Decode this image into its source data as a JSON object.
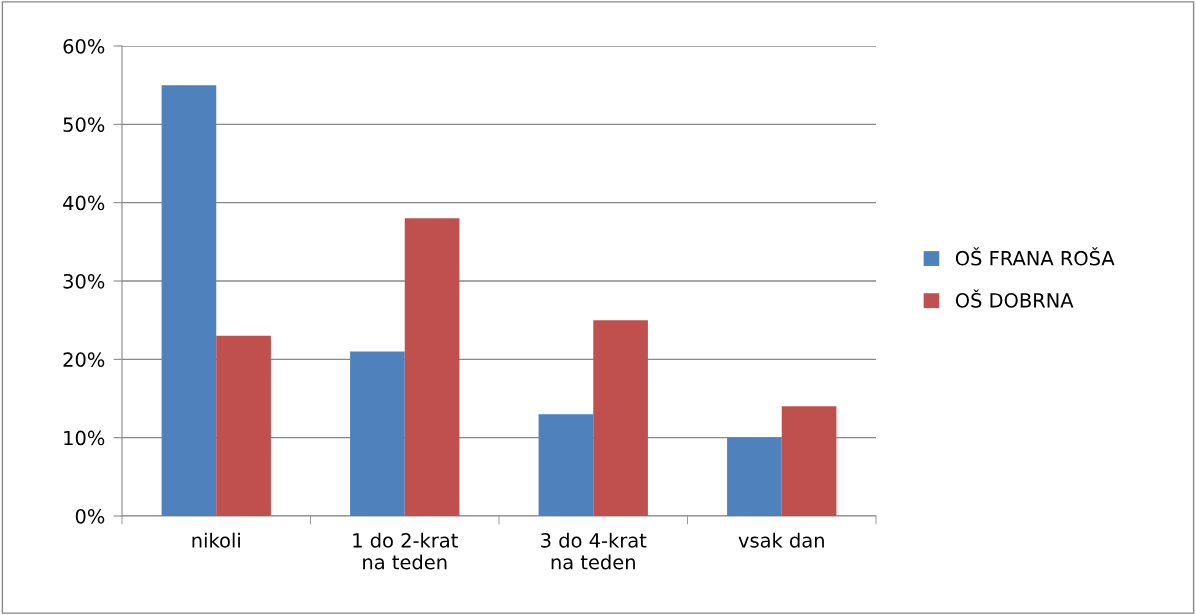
{
  "chart_data": {
    "type": "bar",
    "categories": [
      "nikoli",
      "1 do 2-krat\nna teden",
      "3 do 4-krat\nna teden",
      "vsak dan"
    ],
    "series": [
      {
        "name": "OŠ FRANA ROŠA",
        "color": "#4f81bd",
        "values": [
          55,
          21,
          13,
          10
        ]
      },
      {
        "name": "OŠ DOBRNA",
        "color": "#c0504d",
        "values": [
          23,
          38,
          25,
          14
        ]
      }
    ],
    "ylim": [
      0,
      60
    ],
    "yticks": [
      {
        "value": 0,
        "label": "0%"
      },
      {
        "value": 10,
        "label": "10%"
      },
      {
        "value": 20,
        "label": "20%"
      },
      {
        "value": 30,
        "label": "30%"
      },
      {
        "value": 40,
        "label": "40%"
      },
      {
        "value": 50,
        "label": "50%"
      },
      {
        "value": 60,
        "label": "60%"
      }
    ],
    "grid": "y",
    "legend": "right"
  }
}
